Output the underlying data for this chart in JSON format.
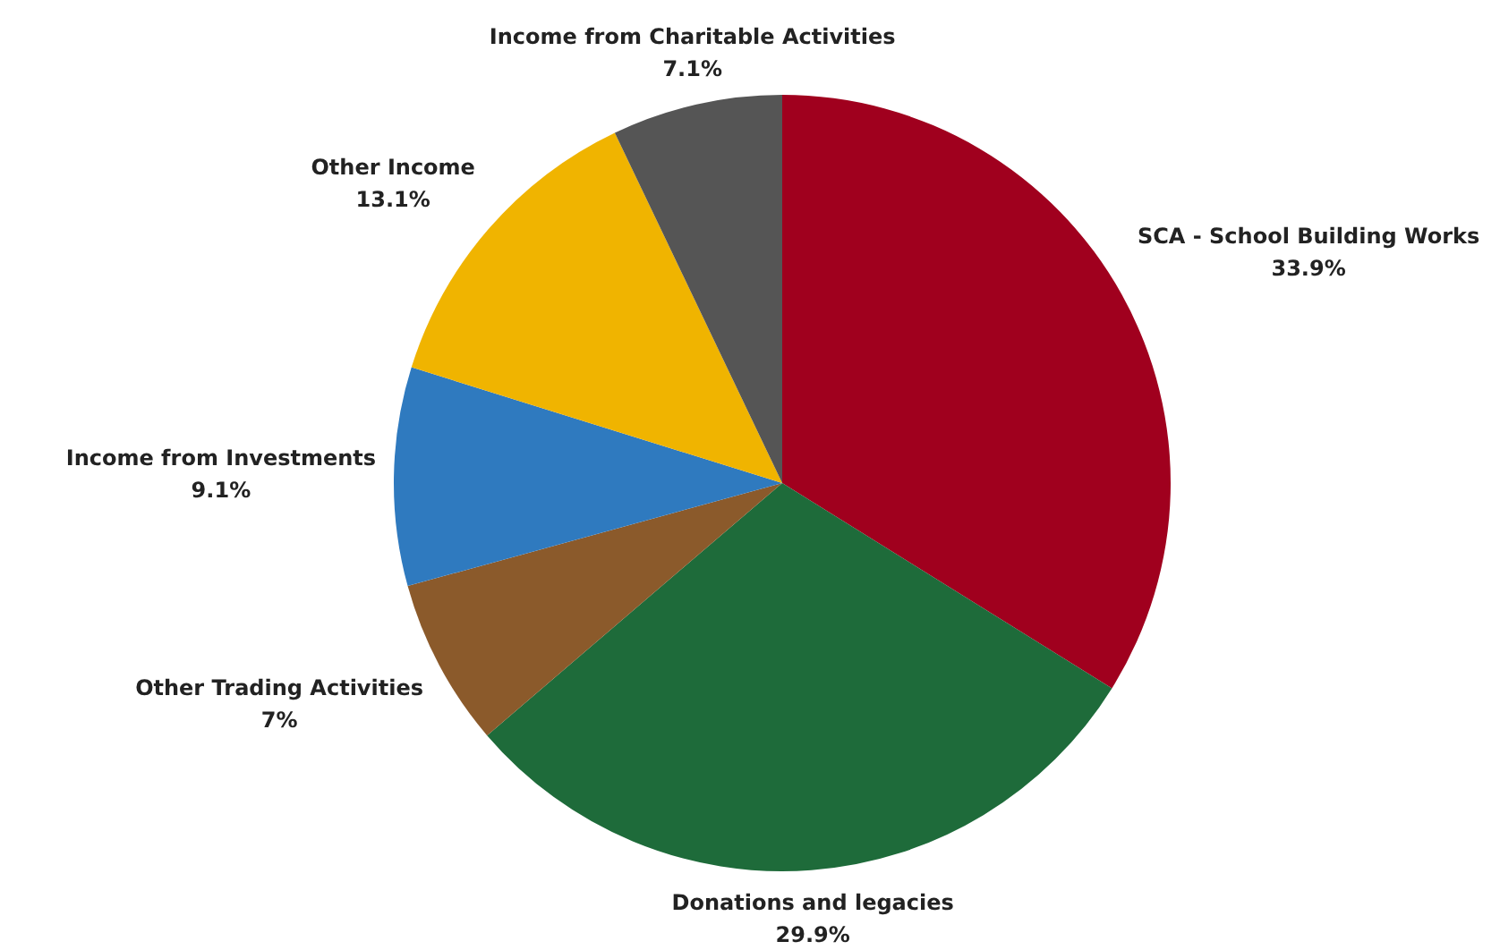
{
  "chart_data": {
    "type": "pie",
    "categories": [
      "SCA - School Building Works",
      "Donations and legacies",
      "Other Trading Activities",
      "Income from Investments",
      "Other Income",
      "Income from Charitable Activities"
    ],
    "values": [
      33.9,
      29.9,
      7,
      9.1,
      13.1,
      7.1
    ],
    "colors": [
      "#a0001e",
      "#1e6b3a",
      "#8b5a2b",
      "#2f7abf",
      "#f0b400",
      "#555555"
    ],
    "value_labels": [
      "33.9%",
      "29.9%",
      "7%",
      "9.1%",
      "13.1%",
      "7.1%"
    ],
    "legend": false
  }
}
